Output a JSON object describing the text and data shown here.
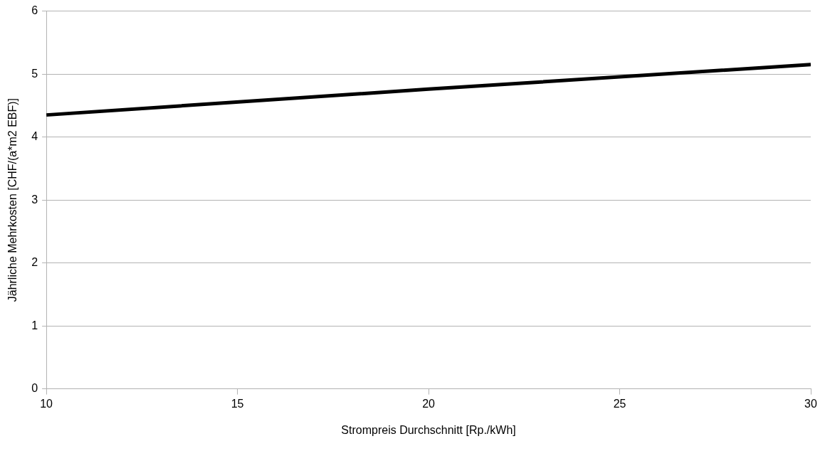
{
  "chart_data": {
    "type": "line",
    "xlabel": "Strompreis Durchschnitt [Rp./kWh]",
    "ylabel": "Jährliche Mehrkosten [CHF/(a*m2 EBF)]",
    "x": [
      10,
      20,
      30
    ],
    "series": [
      {
        "color": "#000000",
        "values": [
          4.35,
          4.76,
          5.15
        ]
      }
    ],
    "xlim": [
      10,
      30
    ],
    "xticks": [
      10,
      15,
      20,
      25,
      30
    ],
    "ylim": [
      0,
      6
    ],
    "yticks": [
      0,
      1,
      2,
      3,
      4,
      5,
      6
    ],
    "grid": "y",
    "legend": false,
    "marker": "none",
    "line_style": "solid"
  }
}
